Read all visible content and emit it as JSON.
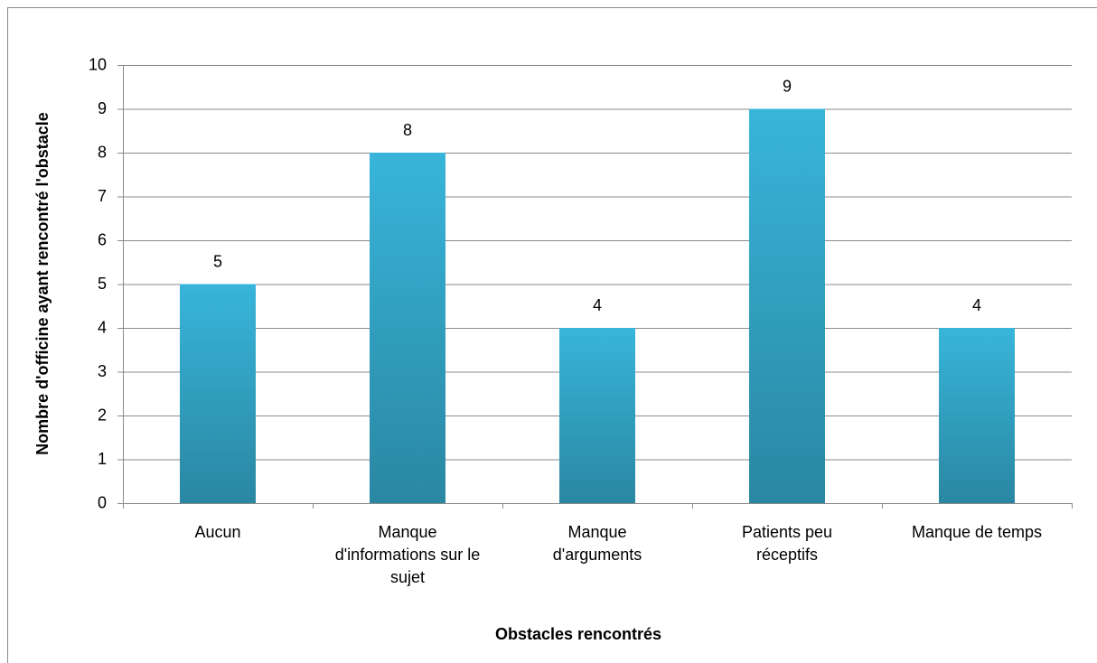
{
  "chart_data": {
    "type": "bar",
    "xlabel": "Obstacles rencontrés",
    "ylabel": "Nombre d'officine ayant rencontré l'obstacle",
    "categories": [
      "Aucun",
      "Manque d'informations sur le sujet",
      "Manque d'arguments",
      "Patients peu réceptifs",
      "Manque de temps"
    ],
    "values": [
      5,
      8,
      4,
      9,
      4
    ],
    "color": "#31a4c6",
    "ylim": [
      0,
      10
    ],
    "yticks": [
      0,
      1,
      2,
      3,
      4,
      5,
      6,
      7,
      8,
      9,
      10
    ],
    "grid": true
  }
}
